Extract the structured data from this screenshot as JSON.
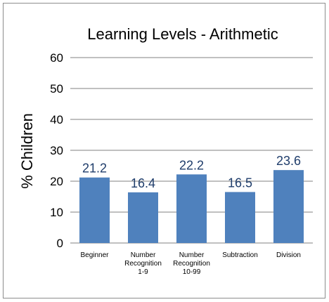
{
  "chart_data": {
    "type": "bar",
    "title": "Learning Levels - Arithmetic",
    "ylabel": "% Children",
    "xlabel": "",
    "ylim": [
      0,
      60
    ],
    "yticks": [
      0,
      10,
      20,
      30,
      40,
      50,
      60
    ],
    "grid": true,
    "categories": [
      [
        "Beginner"
      ],
      [
        "Number",
        "Recognition",
        "1-9"
      ],
      [
        "Number",
        "Recognition",
        "10-99"
      ],
      [
        "Subtraction"
      ],
      [
        "Division"
      ]
    ],
    "values": [
      21.2,
      16.4,
      22.2,
      16.5,
      23.6
    ],
    "data_labels": [
      "21.2",
      "16.4",
      "22.2",
      "16.5",
      "23.6"
    ],
    "bar_color": "#4f81bd",
    "label_color": "#1f3d6b"
  }
}
